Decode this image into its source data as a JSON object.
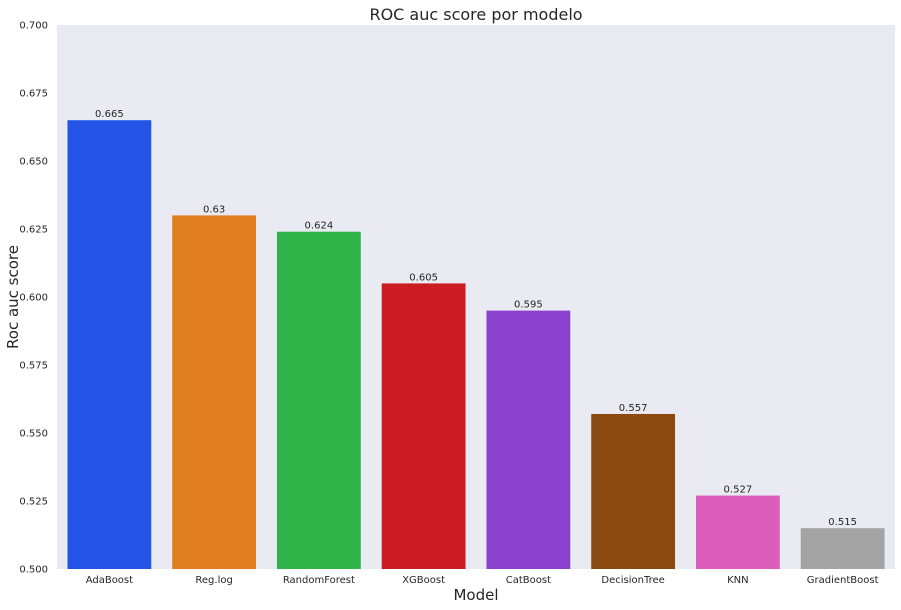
{
  "chart_data": {
    "type": "bar",
    "title": "ROC auc score por modelo",
    "xlabel": "Model",
    "ylabel": "Roc auc score",
    "categories": [
      "AdaBoost",
      "Reg.log",
      "RandomForest",
      "XGBoost",
      "CatBoost",
      "DecisionTree",
      "KNN",
      "GradientBoost"
    ],
    "values": [
      0.665,
      0.63,
      0.624,
      0.605,
      0.595,
      0.557,
      0.527,
      0.515
    ],
    "data_labels": [
      "0.665",
      "0.63",
      "0.624",
      "0.605",
      "0.595",
      "0.557",
      "0.527",
      "0.515"
    ],
    "colors": [
      "#2354e6",
      "#e07e20",
      "#2eb449",
      "#cb1c24",
      "#8a42cc",
      "#8b4a12",
      "#dc5ebc",
      "#a3a3a3"
    ],
    "ylim": [
      0.5,
      0.7
    ],
    "yticks": [
      0.5,
      0.525,
      0.55,
      0.575,
      0.6,
      0.625,
      0.65,
      0.675,
      0.7
    ],
    "ytick_labels": [
      "0.500",
      "0.525",
      "0.550",
      "0.575",
      "0.600",
      "0.625",
      "0.650",
      "0.675",
      "0.700"
    ],
    "grid": false,
    "background": "#eaeaf2",
    "legend": "none"
  }
}
